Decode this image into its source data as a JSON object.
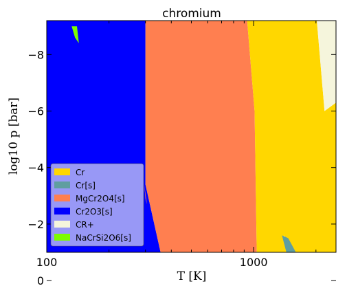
{
  "chart_data": {
    "type": "area",
    "title": "chromium",
    "xlabel": "T [K]",
    "ylabel": "log10 p [bar]",
    "x_scale": "log",
    "xlim": [
      100,
      2500
    ],
    "ylim": [
      -9.2,
      -1
    ],
    "y_inverted": true,
    "x_ticks": [
      {
        "value": 100,
        "label": "100"
      },
      {
        "value": 1000,
        "label": "1000"
      }
    ],
    "y_ticks": [
      {
        "value": -8,
        "label": "−8"
      },
      {
        "value": -6,
        "label": "−6"
      },
      {
        "value": -4,
        "label": "−4"
      },
      {
        "value": -2,
        "label": "−2"
      },
      {
        "value": 0,
        "label": "0"
      }
    ],
    "grid": false,
    "legend_position": "bottom-left",
    "series": [
      {
        "name": "Cr",
        "color": "#ffd700"
      },
      {
        "name": "Cr[s]",
        "color": "#5f9ea0"
      },
      {
        "name": "MgCr2O4[s]",
        "color": "#ff7f50"
      },
      {
        "name": "Cr2O3[s]",
        "color": "#0000ff"
      },
      {
        "name": "CR+",
        "color": "#f5f5dc"
      },
      {
        "name": "NaCrSi2O6[s]",
        "color": "#7cfc00"
      }
    ],
    "regions": [
      {
        "series": "Cr2O3[s]",
        "polygon": [
          [
            100,
            -9.2
          ],
          [
            300,
            -9.2
          ],
          [
            300,
            -3.4
          ],
          [
            355,
            -1
          ],
          [
            100,
            -1
          ]
        ]
      },
      {
        "series": "MgCr2O4[s]",
        "polygon": [
          [
            300,
            -9.2
          ],
          [
            930,
            -9.2
          ],
          [
            1010,
            -6
          ],
          [
            1040,
            0
          ],
          [
            1450,
            -1
          ],
          [
            355,
            -1
          ],
          [
            300,
            -3.4
          ]
        ]
      },
      {
        "series": "MgCr2O4[s]",
        "polygon": [
          [
            296,
            -3.4
          ],
          [
            305,
            -2.7
          ],
          [
            300,
            -2.9
          ]
        ]
      },
      {
        "series": "Cr",
        "polygon": [
          [
            930,
            -9.2
          ],
          [
            2020,
            -9.2
          ],
          [
            2200,
            -6
          ],
          [
            2500,
            -6.3
          ],
          [
            2500,
            -1
          ],
          [
            1600,
            -1
          ],
          [
            1400,
            -1.6
          ],
          [
            1450,
            -1
          ],
          [
            1040,
            0
          ],
          [
            1010,
            -6
          ]
        ]
      },
      {
        "series": "Cr[s]",
        "polygon": [
          [
            1370,
            -1.6
          ],
          [
            1470,
            -1.5
          ],
          [
            1600,
            -1
          ],
          [
            1440,
            -1
          ]
        ]
      },
      {
        "series": "CR+",
        "polygon": [
          [
            2020,
            -9.2
          ],
          [
            2500,
            -9.2
          ],
          [
            2500,
            -6.3
          ],
          [
            2200,
            -6
          ]
        ]
      },
      {
        "series": "NaCrSi2O6[s]",
        "polygon": [
          [
            132,
            -9
          ],
          [
            140,
            -9
          ],
          [
            143,
            -8.4
          ],
          [
            137,
            -8.6
          ]
        ]
      }
    ]
  }
}
